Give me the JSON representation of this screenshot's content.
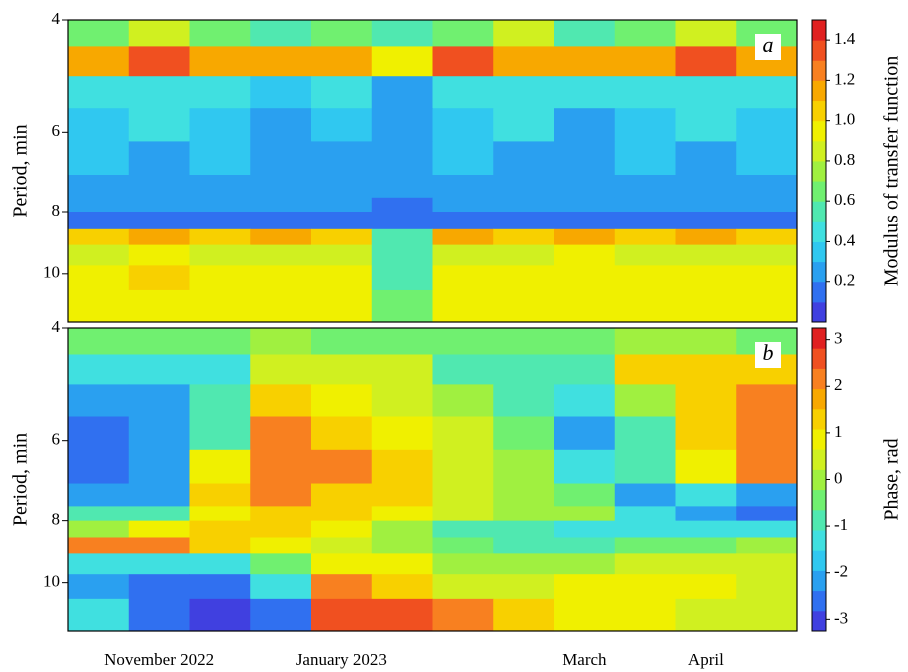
{
  "chart_data": [
    {
      "type": "heatmap",
      "panel_label": "a",
      "ylabel": "Period, min",
      "yscale": "log",
      "ylim": [
        4,
        11.9
      ],
      "yticks": [
        4,
        6,
        8,
        10
      ],
      "y_edges": [
        4,
        4.4,
        4.9,
        5.5,
        6.2,
        7,
        7.6,
        8,
        8.5,
        9,
        9.7,
        10.6,
        11.9
      ],
      "categories": [
        null,
        null,
        null,
        null,
        null,
        null,
        null,
        null,
        null,
        null,
        null,
        null
      ],
      "values": [
        [
          0.7,
          0.8,
          0.7,
          0.6,
          0.7,
          0.5,
          0.7,
          0.8,
          0.6,
          0.7,
          0.8,
          0.7
        ],
        [
          1.2,
          1.3,
          1.2,
          1.1,
          1.2,
          0.9,
          1.3,
          1.2,
          1.1,
          1.2,
          1.3,
          1.2
        ],
        [
          0.4,
          0.45,
          0.4,
          0.35,
          0.4,
          0.25,
          0.4,
          0.45,
          0.4,
          0.4,
          0.45,
          0.4
        ],
        [
          0.35,
          0.4,
          0.35,
          0.3,
          0.35,
          0.2,
          0.35,
          0.4,
          0.3,
          0.35,
          0.4,
          0.35
        ],
        [
          0.35,
          0.3,
          0.35,
          0.3,
          0.3,
          0.2,
          0.35,
          0.3,
          0.3,
          0.35,
          0.3,
          0.35
        ],
        [
          0.3,
          0.3,
          0.25,
          0.3,
          0.3,
          0.2,
          0.3,
          0.25,
          0.3,
          0.3,
          0.25,
          0.3
        ],
        [
          0.2,
          0.2,
          0.2,
          0.2,
          0.2,
          0.15,
          0.2,
          0.2,
          0.2,
          0.2,
          0.2,
          0.2
        ],
        [
          0.15,
          0.15,
          0.15,
          0.15,
          0.15,
          0.1,
          0.15,
          0.15,
          0.15,
          0.15,
          0.15,
          0.15
        ],
        [
          1.0,
          1.1,
          1.0,
          1.1,
          1.0,
          0.6,
          1.1,
          1.0,
          1.1,
          1.0,
          1.1,
          1.0
        ],
        [
          0.8,
          0.9,
          0.8,
          0.85,
          0.8,
          0.5,
          0.85,
          0.8,
          0.9,
          0.8,
          0.85,
          0.8
        ],
        [
          0.9,
          1.0,
          0.9,
          0.9,
          0.9,
          0.6,
          0.9,
          0.95,
          0.9,
          0.9,
          0.95,
          0.9
        ],
        [
          0.9,
          0.95,
          0.9,
          0.9,
          0.9,
          0.7,
          0.9,
          0.9,
          0.95,
          0.9,
          0.9,
          0.9
        ]
      ],
      "colorscale": [
        "#4040e0",
        "#3070f0",
        "#2aa0f0",
        "#30c8f0",
        "#40e0e0",
        "#50e8b0",
        "#70f070",
        "#a0f040",
        "#d0f020",
        "#f0f000",
        "#f8d000",
        "#f8a800",
        "#f88020",
        "#f05020",
        "#e02020"
      ],
      "clim": [
        0,
        1.5
      ],
      "colorbar_label": "Modulus of transfer function",
      "cticks": [
        0.2,
        0.4,
        0.6,
        0.8,
        {
          "value": 1,
          "label": "1.0"
        },
        1.2,
        1.4
      ]
    },
    {
      "type": "heatmap",
      "panel_label": "b",
      "ylabel": "Period, min",
      "yscale": "log",
      "ylim": [
        4,
        11.9
      ],
      "yticks": [
        4,
        6,
        8,
        10
      ],
      "y_edges": [
        4,
        4.4,
        4.9,
        5.5,
        6.2,
        7,
        7.6,
        8,
        8.5,
        9,
        9.7,
        10.6,
        11.9
      ],
      "categories": [
        null,
        "November 2022",
        null,
        null,
        "January 2023",
        null,
        null,
        null,
        "March",
        null,
        "April",
        null
      ],
      "values": [
        [
          -0.5,
          -0.5,
          -0.5,
          0,
          -0.5,
          -0.5,
          -0.5,
          -0.5,
          -0.5,
          0,
          0,
          -0.5
        ],
        [
          -1.5,
          -1.5,
          -1.5,
          0.5,
          0.5,
          0.5,
          -1,
          -1,
          -1,
          1.5,
          1.5,
          1.5
        ],
        [
          -2,
          -2,
          -1,
          1.5,
          1,
          0.5,
          0,
          -1,
          -1.5,
          0,
          1.5,
          2
        ],
        [
          -2.5,
          -2,
          -1,
          2,
          1.5,
          1,
          0.5,
          -0.5,
          -2,
          -1,
          1.5,
          2
        ],
        [
          -2.5,
          -2,
          1,
          2,
          2,
          1.5,
          0.5,
          0,
          -1.5,
          -1,
          1,
          2
        ],
        [
          -2,
          -2,
          1.5,
          2,
          1.5,
          1.5,
          0.5,
          0,
          -0.5,
          -2,
          -1.5,
          -2
        ],
        [
          -1,
          -1,
          1,
          1.5,
          1.5,
          1,
          0.5,
          0,
          0,
          -1.5,
          -2,
          -2.5
        ],
        [
          0,
          1,
          1.5,
          1.5,
          1,
          0,
          -1,
          -1,
          -1.5,
          -1.5,
          -1.5,
          -1.5
        ],
        [
          2,
          2,
          1.5,
          1,
          0.5,
          0,
          -0.5,
          -1,
          -1,
          -0.5,
          -0.5,
          0
        ],
        [
          -1.5,
          -1.5,
          -1.5,
          -0.5,
          1,
          1,
          0,
          0,
          0,
          0.5,
          0.5,
          0.5
        ],
        [
          -2,
          -2.5,
          -2.5,
          -1.5,
          2,
          1.5,
          0.5,
          0.5,
          1,
          1,
          1,
          0.5
        ],
        [
          -1.5,
          -2.5,
          -3,
          -2.5,
          2.5,
          2.5,
          2,
          1.5,
          1,
          1,
          0.5,
          0.5
        ]
      ],
      "colorscale": [
        "#4040e0",
        "#3070f0",
        "#2aa0f0",
        "#30c8f0",
        "#40e0e0",
        "#50e8b0",
        "#70f070",
        "#a0f040",
        "#d0f020",
        "#f0f000",
        "#f8d000",
        "#f8a800",
        "#f88020",
        "#f05020",
        "#e02020"
      ],
      "clim": [
        -3.25,
        3.25
      ],
      "colorbar_label": "Phase, rad",
      "cticks": [
        -3,
        -2,
        -1,
        0,
        1,
        2,
        3
      ]
    }
  ]
}
